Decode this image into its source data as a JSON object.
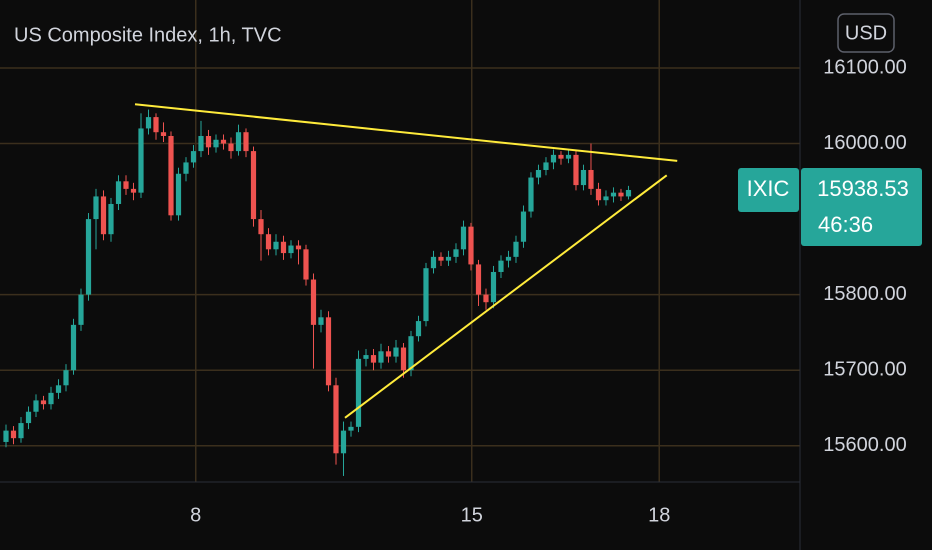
{
  "chart_data": {
    "type": "candlestick",
    "title": "US Composite Index, 1h, TVC",
    "currency": "USD",
    "symbol": "IXIC",
    "countdown": "46:36",
    "up_color": "#26a69a",
    "down_color": "#ef5350",
    "trendline_color": "#ffeb3b",
    "grid": true,
    "ylim": [
      15552,
      16190
    ],
    "yticks": [
      {
        "value": 15600,
        "label": "15600.00"
      },
      {
        "value": 15700,
        "label": "15700.00"
      },
      {
        "value": 15800,
        "label": "15800.00"
      },
      {
        "value": 16000,
        "label": "16000.00"
      },
      {
        "value": 16100,
        "label": "16100.00"
      }
    ],
    "xlim": [
      -0.8,
      105.87
    ],
    "xticks": [
      {
        "value": 25.3,
        "label": "8"
      },
      {
        "value": 62.1,
        "label": "15"
      },
      {
        "value": 87.1,
        "label": "18"
      }
    ],
    "ohlc": [
      [
        15605,
        15628,
        15598,
        15620
      ],
      [
        15620,
        15626,
        15602,
        15610
      ],
      [
        15610,
        15638,
        15604,
        15630
      ],
      [
        15630,
        15652,
        15622,
        15645
      ],
      [
        15645,
        15668,
        15638,
        15660
      ],
      [
        15660,
        15666,
        15648,
        15655
      ],
      [
        15655,
        15678,
        15648,
        15670
      ],
      [
        15670,
        15688,
        15662,
        15680
      ],
      [
        15680,
        15708,
        15672,
        15700
      ],
      [
        15700,
        15768,
        15694,
        15760
      ],
      [
        15760,
        15808,
        15752,
        15800
      ],
      [
        15800,
        15908,
        15792,
        15900
      ],
      [
        15900,
        15940,
        15860,
        15930
      ],
      [
        15930,
        15938,
        15872,
        15880
      ],
      [
        15880,
        15928,
        15870,
        15920
      ],
      [
        15920,
        15958,
        15912,
        15950
      ],
      [
        15950,
        15958,
        15932,
        15940
      ],
      [
        15940,
        15948,
        15925,
        15935
      ],
      [
        15935,
        16040,
        15928,
        16020
      ],
      [
        16020,
        16045,
        16012,
        16035
      ],
      [
        16035,
        16040,
        16005,
        16015
      ],
      [
        16015,
        16028,
        16002,
        16010
      ],
      [
        16010,
        16016,
        15898,
        15905
      ],
      [
        15905,
        15968,
        15898,
        15960
      ],
      [
        15960,
        15982,
        15950,
        15975
      ],
      [
        15975,
        15998,
        15968,
        15990
      ],
      [
        15990,
        16030,
        15982,
        16010
      ],
      [
        16010,
        16018,
        15985,
        15995
      ],
      [
        15995,
        16012,
        15988,
        16005
      ],
      [
        16005,
        16012,
        15992,
        16000
      ],
      [
        16000,
        16008,
        15980,
        15990
      ],
      [
        15990,
        16025,
        15984,
        16015
      ],
      [
        16015,
        16020,
        15982,
        15990
      ],
      [
        15990,
        15996,
        15890,
        15900
      ],
      [
        15900,
        15912,
        15845,
        15880
      ],
      [
        15880,
        15888,
        15852,
        15860
      ],
      [
        15860,
        15880,
        15852,
        15870
      ],
      [
        15870,
        15878,
        15846,
        15855
      ],
      [
        15855,
        15872,
        15848,
        15865
      ],
      [
        15865,
        15872,
        15840,
        15860
      ],
      [
        15860,
        15866,
        15812,
        15820
      ],
      [
        15820,
        15828,
        15702,
        15760
      ],
      [
        15760,
        15780,
        15750,
        15770
      ],
      [
        15770,
        15778,
        15672,
        15680
      ],
      [
        15680,
        15690,
        15575,
        15590
      ],
      [
        15590,
        15632,
        15560,
        15620
      ],
      [
        15620,
        15632,
        15612,
        15625
      ],
      [
        15625,
        15726,
        15618,
        15715
      ],
      [
        15715,
        15728,
        15705,
        15720
      ],
      [
        15720,
        15728,
        15700,
        15710
      ],
      [
        15710,
        15735,
        15702,
        15725
      ],
      [
        15725,
        15732,
        15710,
        15718
      ],
      [
        15718,
        15740,
        15710,
        15730
      ],
      [
        15730,
        15736,
        15690,
        15700
      ],
      [
        15700,
        15752,
        15692,
        15745
      ],
      [
        15745,
        15772,
        15738,
        15765
      ],
      [
        15765,
        15842,
        15758,
        15835
      ],
      [
        15835,
        15858,
        15828,
        15850
      ],
      [
        15850,
        15856,
        15838,
        15845
      ],
      [
        15845,
        15858,
        15838,
        15850
      ],
      [
        15850,
        15868,
        15842,
        15860
      ],
      [
        15860,
        15898,
        15852,
        15890
      ],
      [
        15890,
        15895,
        15832,
        15840
      ],
      [
        15840,
        15846,
        15785,
        15800
      ],
      [
        15800,
        15808,
        15780,
        15790
      ],
      [
        15790,
        15838,
        15782,
        15830
      ],
      [
        15830,
        15852,
        15822,
        15845
      ],
      [
        15845,
        15858,
        15836,
        15850
      ],
      [
        15850,
        15878,
        15842,
        15870
      ],
      [
        15870,
        15918,
        15862,
        15910
      ],
      [
        15910,
        15962,
        15902,
        15955
      ],
      [
        15955,
        15972,
        15946,
        15965
      ],
      [
        15965,
        15982,
        15958,
        15975
      ],
      [
        15975,
        15992,
        15966,
        15985
      ],
      [
        15985,
        15990,
        15972,
        15980
      ],
      [
        15980,
        15992,
        15974,
        15985
      ],
      [
        15985,
        15990,
        15938,
        15945
      ],
      [
        15945,
        15972,
        15938,
        15965
      ],
      [
        15965,
        16000,
        15932,
        15940
      ],
      [
        15940,
        15948,
        15918,
        15925
      ],
      [
        15925,
        15938,
        15918,
        15930
      ],
      [
        15930,
        15942,
        15922,
        15935
      ],
      [
        15935,
        15940,
        15924,
        15930
      ],
      [
        15930,
        15944,
        15926,
        15938.53
      ]
    ],
    "trendlines": [
      [
        [
          17.2,
          16052
        ],
        [
          89.5,
          15977
        ]
      ],
      [
        [
          45.2,
          15637
        ],
        [
          88.1,
          15958
        ]
      ]
    ]
  }
}
